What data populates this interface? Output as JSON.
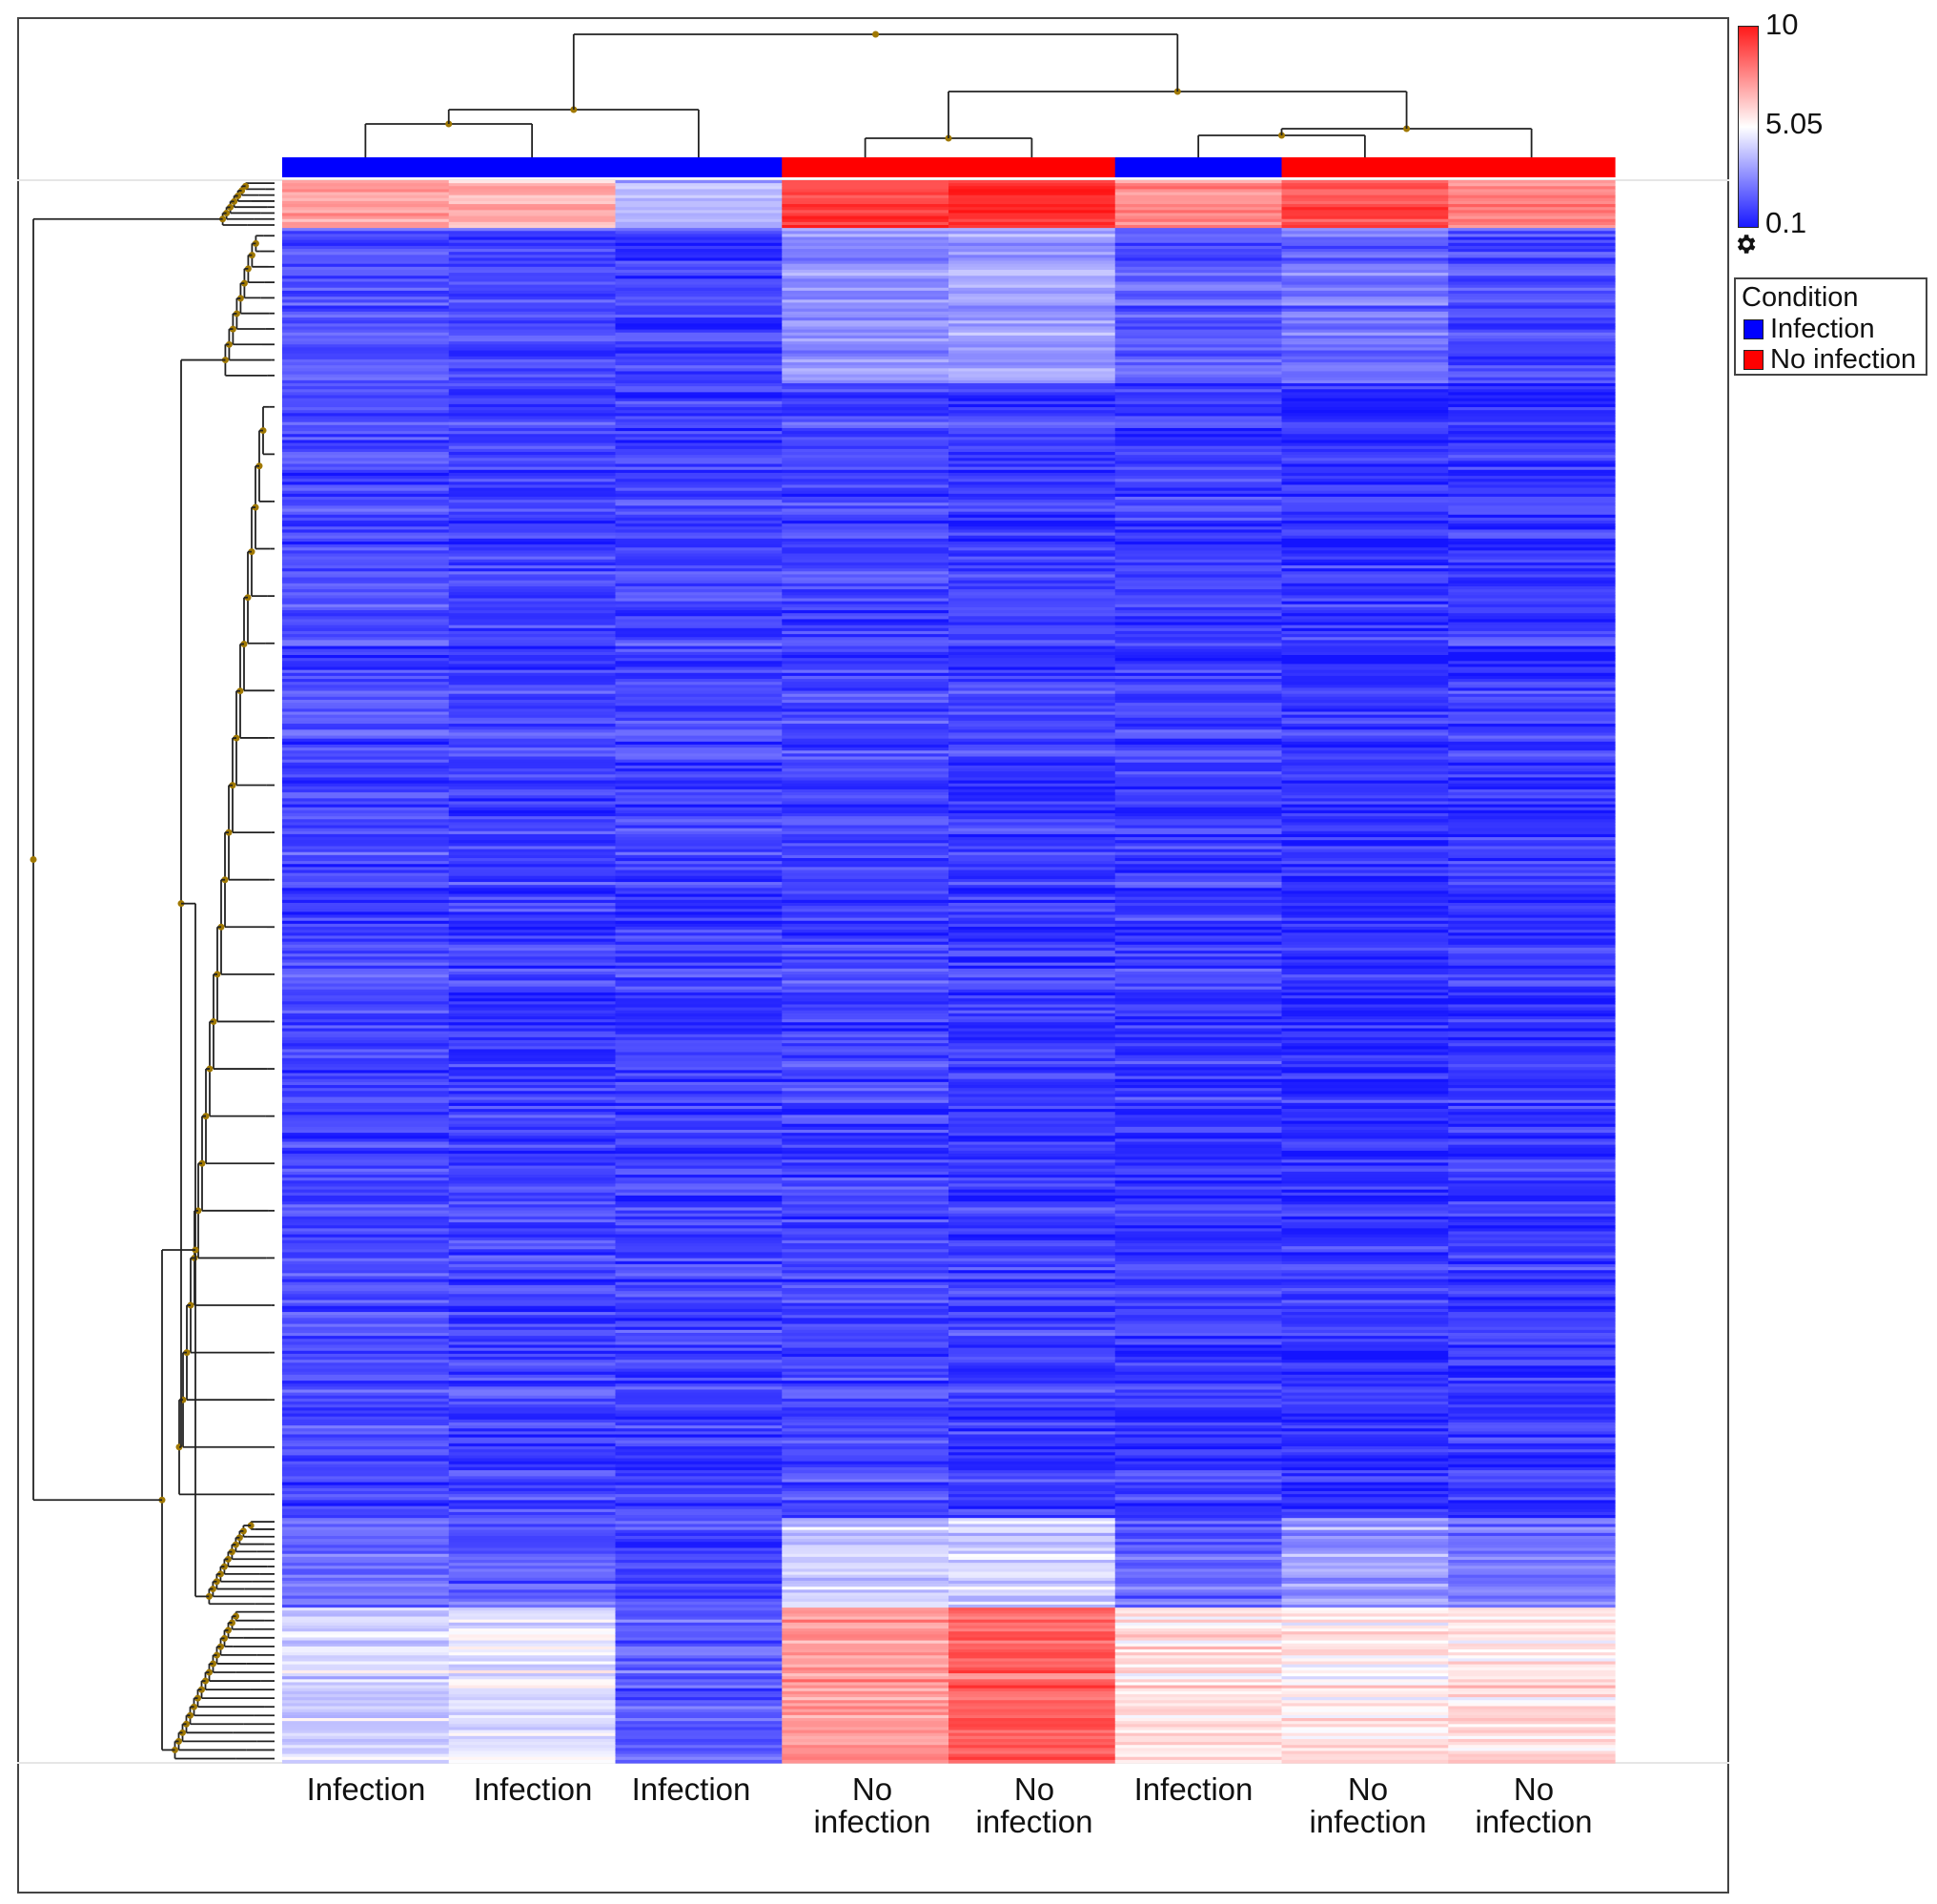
{
  "chart_data": {
    "type": "heatmap",
    "columns": [
      "Infection",
      "Infection",
      "Infection",
      "No\ninfection",
      "No\ninfection",
      "Infection",
      "No\ninfection",
      "No\ninfection"
    ],
    "column_condition": [
      "Infection",
      "Infection",
      "Infection",
      "No infection",
      "No infection",
      "Infection",
      "No infection",
      "No infection"
    ],
    "color_scale": {
      "min": 0.1,
      "mid": 5.05,
      "max": 10,
      "min_color": "#1414ff",
      "mid_color": "#ffffff",
      "max_color": "#ff1414"
    },
    "colorbar_ticks": [
      "10",
      "5.05",
      "0.1"
    ],
    "legend": {
      "title": "Condition",
      "items": [
        {
          "label": "Infection",
          "color": "#0000ff"
        },
        {
          "label": "No infection",
          "color": "#ff0000"
        }
      ]
    },
    "row_blocks": [
      {
        "rows": 16,
        "values": [
          7.0,
          6.5,
          3.5,
          9.0,
          9.5,
          7.5,
          8.5,
          7.5
        ]
      },
      {
        "rows": 52,
        "values": [
          1.3,
          1.1,
          0.9,
          2.6,
          3.0,
          1.5,
          2.0,
          1.2
        ]
      },
      {
        "rows": 380,
        "values": [
          1.2,
          1.0,
          1.0,
          1.1,
          0.9,
          0.9,
          0.7,
          0.8
        ]
      },
      {
        "rows": 30,
        "values": [
          2.0,
          1.7,
          1.3,
          4.0,
          4.0,
          1.8,
          3.0,
          2.2
        ]
      },
      {
        "rows": 52,
        "values": [
          4.2,
          4.5,
          1.6,
          7.2,
          8.3,
          5.6,
          5.4,
          5.6
        ]
      }
    ],
    "dendrogram": {
      "columns": true,
      "rows": true
    },
    "grid": false
  }
}
